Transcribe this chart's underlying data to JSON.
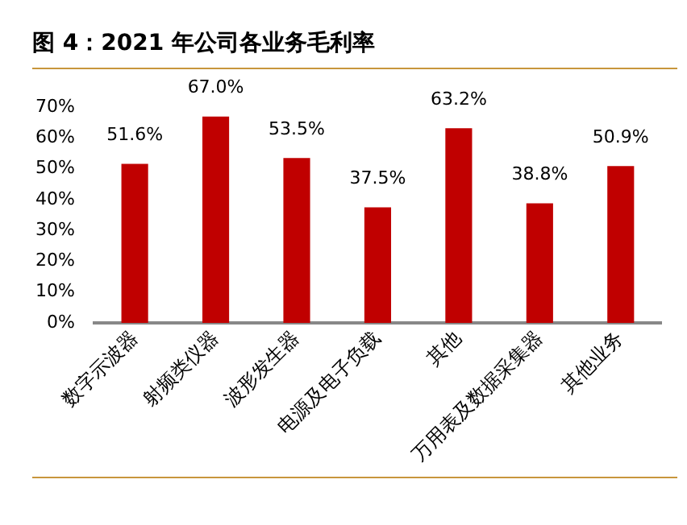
{
  "chart_data": {
    "type": "bar",
    "title": "图 4：2021 年公司各业务毛利率",
    "categories": [
      "数字示波器",
      "射频类仪器",
      "波形发生器",
      "电源及电子负载",
      "其他",
      "万用表及数据采集器",
      "其他业务"
    ],
    "values": [
      51.6,
      67.0,
      53.5,
      37.5,
      63.2,
      38.8,
      50.9
    ],
    "value_labels": [
      "51.6%",
      "67.0%",
      "53.5%",
      "37.5%",
      "63.2%",
      "38.8%",
      "50.9%"
    ],
    "color": "#c00000",
    "ylim": [
      0,
      70
    ],
    "yticks": [
      {
        "value": 0,
        "label": "0%"
      },
      {
        "value": 10,
        "label": "10%"
      },
      {
        "value": 20,
        "label": "20%"
      },
      {
        "value": 30,
        "label": "30%"
      },
      {
        "value": 40,
        "label": "40%"
      },
      {
        "value": 50,
        "label": "50%"
      },
      {
        "value": 60,
        "label": "60%"
      },
      {
        "value": 70,
        "label": "70%"
      }
    ],
    "grid": false,
    "legend": false
  }
}
